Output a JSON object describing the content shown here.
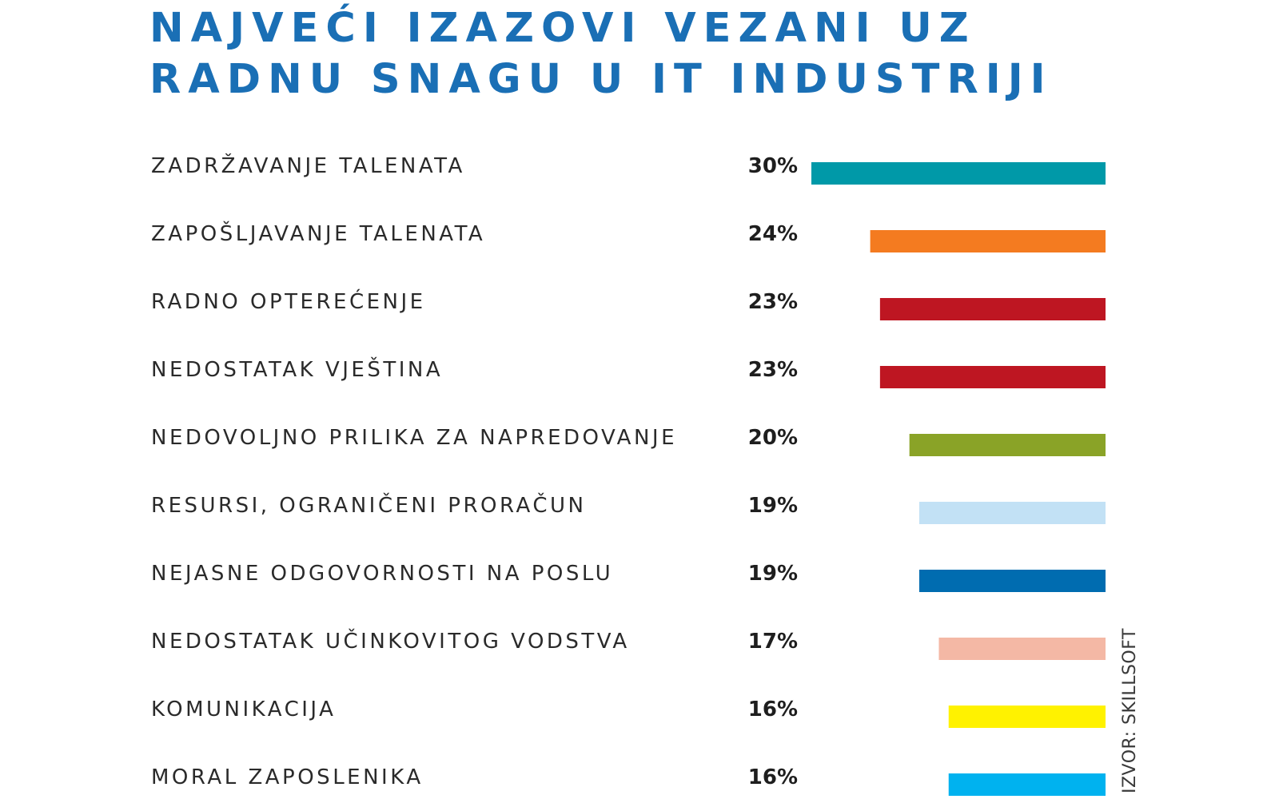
{
  "chart_data": {
    "type": "bar",
    "orientation": "horizontal",
    "title_lines": [
      "NAJVEĆI IZAZOVI VEZANI UZ",
      "RADNU SNAGU U IT INDUSTRIJI"
    ],
    "source": "IZVOR: SKILLSOFT",
    "categories": [
      "ZADRŽAVANJE TALENATA",
      "ZAPOŠLJAVANJE TALENATA",
      "RADNO OPTEREĆENJE",
      "NEDOSTATAK VJEŠTINA",
      "NEDOVOLJNO PRILIKA ZA NAPREDOVANJE",
      "RESURSI, OGRANIČENI PRORAČUN",
      "NEJASNE ODGOVORNOSTI NA POSLU",
      "NEDOSTATAK UČINKOVITOG VODSTVA",
      "KOMUNIKACIJA",
      "MORAL ZAPOSLENIKA"
    ],
    "values": [
      30,
      24,
      23,
      23,
      20,
      19,
      19,
      17,
      16,
      16
    ],
    "value_labels": [
      "30%",
      "24%",
      "23%",
      "23%",
      "20%",
      "19%",
      "19%",
      "17%",
      "16%",
      "16%"
    ],
    "colors": [
      "#0099a8",
      "#f47b20",
      "#be1622",
      "#be1622",
      "#8aa327",
      "#c2e1f5",
      "#006cb0",
      "#f4b8a5",
      "#fff200",
      "#00b2ef"
    ],
    "xlim": [
      0,
      30
    ],
    "grid": false,
    "legend": "none"
  }
}
